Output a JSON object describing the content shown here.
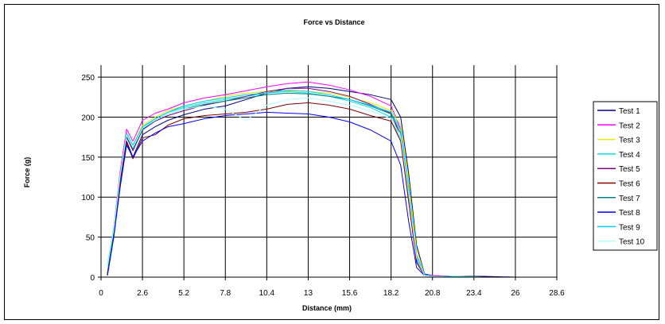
{
  "chart_data": {
    "type": "line",
    "title": "Force vs Distance",
    "xlabel": "Distance (mm)",
    "ylabel": "Force (g)",
    "x_ticks": [
      "0",
      "2.6",
      "5.2",
      "7.8",
      "10.4",
      "13",
      "15.6",
      "18.2",
      "20.8",
      "23.4",
      "26",
      "28.6"
    ],
    "y_ticks": [
      "0",
      "50",
      "100",
      "150",
      "200",
      "250"
    ],
    "xlim": [
      0,
      28.6
    ],
    "ylim": [
      0,
      265
    ],
    "grid": true,
    "legend_position": "right",
    "x": [
      0.4,
      0.8,
      1.2,
      1.6,
      2.0,
      2.6,
      3.4,
      4.2,
      5.2,
      6.5,
      7.8,
      9.1,
      10.4,
      11.7,
      13.0,
      14.3,
      15.6,
      16.9,
      18.2,
      18.8,
      19.3,
      19.8,
      20.3,
      20.8,
      22.0,
      24.0,
      26.0
    ],
    "series": [
      {
        "name": "Test 1",
        "color": "#000080",
        "values": [
          3,
          55,
          120,
          170,
          150,
          178,
          188,
          196,
          203,
          210,
          214,
          222,
          230,
          236,
          238,
          236,
          232,
          228,
          222,
          200,
          130,
          40,
          4,
          2,
          1,
          1,
          0
        ]
      },
      {
        "name": "Test 2",
        "color": "#ff00ff",
        "values": [
          5,
          62,
          132,
          185,
          170,
          196,
          205,
          210,
          218,
          224,
          228,
          233,
          238,
          242,
          244,
          240,
          234,
          226,
          214,
          185,
          110,
          25,
          3,
          2,
          1,
          0,
          0
        ]
      },
      {
        "name": "Test 3",
        "color": "#e8e800",
        "values": [
          4,
          60,
          128,
          180,
          165,
          190,
          200,
          208,
          214,
          220,
          226,
          230,
          232,
          233,
          232,
          230,
          225,
          218,
          208,
          190,
          120,
          35,
          3,
          1,
          1,
          0,
          0
        ]
      },
      {
        "name": "Test 4",
        "color": "#00e0e0",
        "values": [
          5,
          58,
          125,
          178,
          160,
          186,
          198,
          206,
          212,
          218,
          222,
          226,
          230,
          232,
          230,
          226,
          220,
          212,
          200,
          170,
          100,
          20,
          2,
          1,
          1,
          0,
          0
        ]
      },
      {
        "name": "Test 5",
        "color": "#800080",
        "values": [
          3,
          55,
          122,
          175,
          158,
          184,
          195,
          202,
          208,
          215,
          220,
          226,
          232,
          236,
          236,
          232,
          226,
          216,
          205,
          175,
          105,
          22,
          3,
          1,
          0,
          0,
          0
        ]
      },
      {
        "name": "Test 6",
        "color": "#800000",
        "values": [
          2,
          50,
          115,
          168,
          148,
          174,
          178,
          190,
          198,
          202,
          204,
          206,
          210,
          216,
          218,
          215,
          210,
          202,
          195,
          170,
          95,
          18,
          2,
          1,
          0,
          0,
          0
        ]
      },
      {
        "name": "Test 7",
        "color": "#008080",
        "values": [
          4,
          57,
          124,
          176,
          160,
          185,
          196,
          204,
          210,
          216,
          220,
          224,
          228,
          230,
          229,
          226,
          222,
          214,
          204,
          180,
          110,
          25,
          3,
          1,
          0,
          0,
          0
        ]
      },
      {
        "name": "Test 8",
        "color": "#0000ff",
        "values": [
          2,
          50,
          112,
          165,
          150,
          170,
          180,
          188,
          192,
          198,
          202,
          204,
          206,
          205,
          204,
          200,
          194,
          184,
          170,
          140,
          70,
          12,
          2,
          1,
          0,
          0,
          0
        ]
      },
      {
        "name": "Test 9",
        "color": "#00ccff",
        "values": [
          15,
          62,
          128,
          180,
          165,
          188,
          198,
          206,
          214,
          220,
          224,
          228,
          230,
          234,
          232,
          228,
          222,
          215,
          206,
          184,
          112,
          28,
          3,
          1,
          0,
          0,
          0
        ]
      },
      {
        "name": "Test 10",
        "color": "#b0ffff",
        "values": [
          14,
          60,
          126,
          178,
          162,
          186,
          196,
          204,
          210,
          214,
          210,
          196,
          215,
          222,
          224,
          220,
          215,
          208,
          198,
          176,
          105,
          24,
          2,
          1,
          0,
          0,
          0
        ]
      }
    ]
  }
}
